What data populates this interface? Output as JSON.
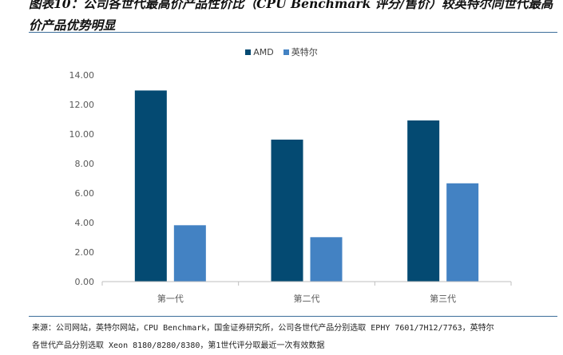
{
  "header": {
    "title": "图表10：公司各世代最高价产品性价比（CPU Benchmark 评分/售价）较英特尔同世代最高价产品优势明显"
  },
  "footer": {
    "source_line1": "来源：公司网站，英特尔网站，CPU Benchmark，国金证券研究所，公司各世代产品分别选取 EPHY 7601/7H12/7763，英特尔",
    "source_line2": "各世代产品分别选取 Xeon 8180/8280/8380，第1世代评分取最近一次有效数据"
  },
  "colors": {
    "amd": "#044a72",
    "intel": "#4382c3",
    "axis": "#bfbfbf",
    "tick_text": "#595959",
    "rule": "#3d6e9a"
  },
  "chart_data": {
    "type": "bar",
    "categories": [
      "第一代",
      "第二代",
      "第三代"
    ],
    "series": [
      {
        "name": "AMD",
        "values": [
          12.95,
          9.62,
          10.92
        ]
      },
      {
        "name": "英特尔",
        "values": [
          3.82,
          3.01,
          6.66
        ]
      }
    ],
    "ylim": [
      0,
      14
    ],
    "yticks": [
      "0.00",
      "2.00",
      "4.00",
      "6.00",
      "8.00",
      "10.00",
      "12.00",
      "14.00"
    ],
    "legend_position": "top-center",
    "grid": false
  }
}
